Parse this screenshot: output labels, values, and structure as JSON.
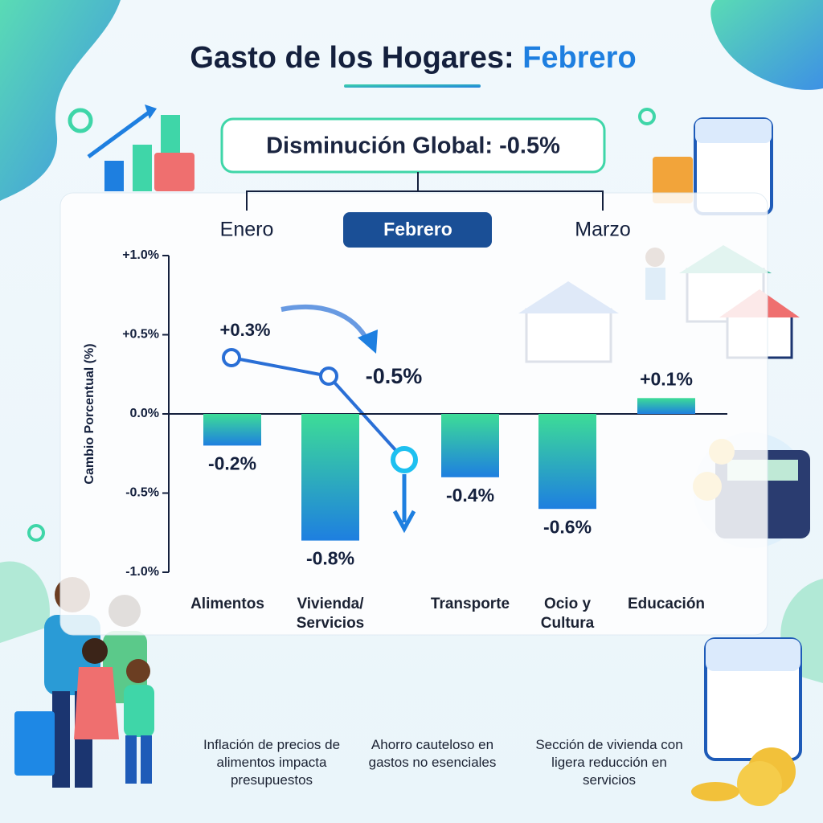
{
  "chart_data": {
    "type": "bar",
    "title": "Gasto de los Hogares:",
    "title_highlight": "Febrero",
    "subtitle": "Disminución Global: -0.5%",
    "timeline": [
      "Enero",
      "Febrero",
      "Marzo"
    ],
    "y_label": "Cambio Porcentual (%)",
    "categories": [
      "Alimentos",
      "Vivienda/ Servicios",
      "Transporte",
      "Ocio y Cultura",
      "Educación"
    ],
    "values": [
      -0.2,
      -0.8,
      -0.4,
      -0.6,
      0.1
    ],
    "value_labels": [
      "-0.2%",
      "-0.8%",
      "-0.4%",
      "-0.6%",
      "+0.1%"
    ],
    "colors": [
      "#3ddc97",
      "#1e7fe0"
    ],
    "ylim": [
      -1.0,
      1.0
    ],
    "yticks": [
      {
        "value": 1.0,
        "label": "+1.0%"
      },
      {
        "value": 0.5,
        "label": "+0.5%"
      },
      {
        "value": 0.0,
        "label": "0.0%"
      },
      {
        "value": -0.5,
        "label": "-0.5%"
      },
      {
        "value": -1.0,
        "label": "-1.0%"
      }
    ],
    "annotations": [
      "+0.3%",
      "-0.5%"
    ],
    "notes": [
      "Inflación de precios de alimentos impacta presupuestos",
      "Ahorro cauteloso en gastos no esenciales",
      "Sección de vivienda con ligera reducción en servicios"
    ]
  }
}
